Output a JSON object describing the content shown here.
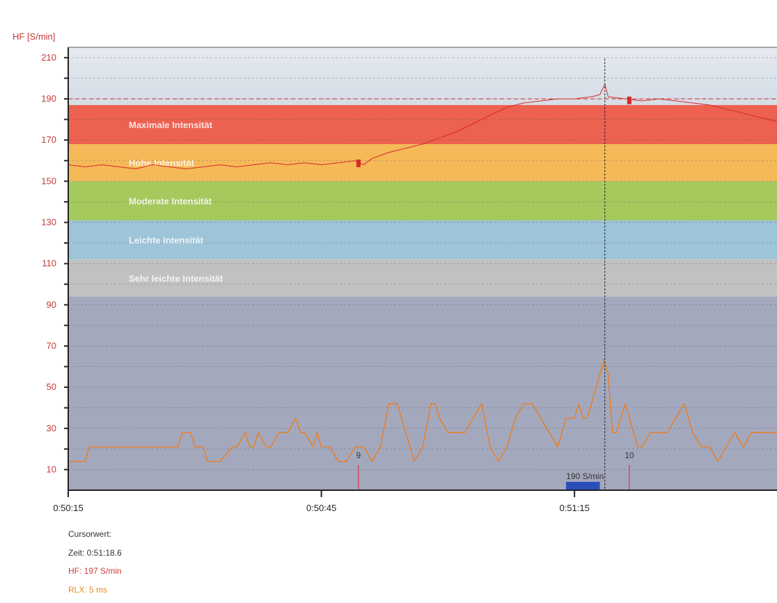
{
  "colors": {
    "hf": "#d62828",
    "hf_axis": "#c43a3a",
    "rlx": "#f07a14",
    "zone_max": "#ec6150",
    "zone_high": "#f5b958",
    "zone_moderate": "#a6c95e",
    "zone_light": "#9dc4d8",
    "zone_very_light": "#c1c1c1",
    "below_zones": "#a4a8bc",
    "above_zones_top": "#e6eaf0",
    "above_zones_bottom": "#d5dde6",
    "selection": "#2a4fb8"
  },
  "cursor": {
    "title": "Cursorwert:",
    "time": "Zeit: 0:51:18.6",
    "hf": "HF: 197 S/min",
    "rlx": "RLX: 5 ms"
  },
  "chart_data": {
    "type": "line",
    "ylabel": "HF [S/min]",
    "ylim": [
      0,
      215
    ],
    "yticks": [
      10,
      30,
      50,
      70,
      90,
      110,
      130,
      150,
      170,
      190,
      210
    ],
    "xlim_seconds": [
      0,
      84
    ],
    "xticks": [
      {
        "t": 0,
        "label": "0:50:15"
      },
      {
        "t": 30,
        "label": "0:50:45"
      },
      {
        "t": 60,
        "label": "0:51:15"
      }
    ],
    "grid": true,
    "zones": [
      {
        "name": "Maximale Intensität",
        "from": 168,
        "to": 187
      },
      {
        "name": "Hohe Intensität",
        "from": 150,
        "to": 168
      },
      {
        "name": "Moderate Intensität",
        "from": 131,
        "to": 150
      },
      {
        "name": "Leichte Intensität",
        "from": 112,
        "to": 131
      },
      {
        "name": "Sehr leichte Intensität",
        "from": 94,
        "to": 112
      }
    ],
    "hf_limit": 190,
    "cursor_t": 63.6,
    "laps": [
      {
        "t": 34.4,
        "label": "9"
      },
      {
        "t": 66.5,
        "label": "10"
      }
    ],
    "selection_label": "190 S/min",
    "selection_range": [
      59,
      63
    ],
    "series": [
      {
        "name": "HF",
        "x": [
          0,
          2,
          4,
          6,
          8,
          10,
          12,
          14,
          16,
          18,
          20,
          22,
          24,
          26,
          28,
          30,
          32,
          34,
          35,
          36,
          38,
          40,
          42,
          44,
          46,
          48,
          50,
          52,
          54,
          56,
          58,
          60,
          62,
          63,
          63.6,
          64,
          66,
          68,
          70,
          72,
          74,
          76,
          78,
          80,
          82,
          84
        ],
        "y": [
          158,
          157,
          158,
          157,
          156,
          158,
          157,
          156,
          157,
          158,
          157,
          158,
          159,
          158,
          159,
          158,
          159,
          160,
          158,
          161,
          164,
          166,
          168,
          171,
          174,
          178,
          182,
          186,
          188,
          189,
          190,
          190,
          191,
          192,
          197,
          191,
          190,
          189,
          190,
          189,
          188,
          187,
          185,
          183,
          181,
          179
        ]
      },
      {
        "name": "RLX",
        "x": [
          0,
          2,
          2.5,
          5,
          7,
          9,
          11,
          13,
          13.5,
          14.5,
          15,
          16,
          16.5,
          18,
          19.5,
          20,
          21,
          21.5,
          22,
          22.5,
          23.5,
          24,
          25,
          26,
          27,
          27.5,
          28,
          29,
          29.5,
          30,
          31,
          32,
          33,
          34,
          35,
          36,
          37,
          38,
          39,
          40,
          41,
          42,
          43,
          43.5,
          44,
          45,
          46,
          46.5,
          47,
          48,
          49,
          50,
          51,
          52,
          53,
          54,
          55,
          56,
          57,
          58,
          58.5,
          59,
          60,
          60.5,
          61,
          61.5,
          62,
          62.5,
          63,
          63.5,
          64,
          64.5,
          65,
          65.5,
          66,
          66.5,
          67,
          67.5,
          68,
          69,
          70,
          71,
          72,
          73,
          74,
          75,
          76,
          77,
          78,
          79,
          80,
          81,
          82,
          83,
          84
        ],
        "y": [
          14,
          14,
          21,
          21,
          21,
          21,
          21,
          21,
          28,
          28,
          21,
          21,
          14,
          14,
          21,
          21,
          28,
          21,
          21,
          28,
          21,
          21,
          28,
          28,
          35,
          28,
          28,
          21,
          28,
          21,
          21,
          14,
          14,
          21,
          21,
          14,
          21,
          42,
          42,
          28,
          14,
          21,
          42,
          42,
          35,
          28,
          28,
          28,
          28,
          35,
          42,
          21,
          14,
          21,
          35,
          42,
          42,
          35,
          28,
          21,
          28,
          35,
          35,
          42,
          35,
          35,
          42,
          49,
          56,
          63,
          56,
          28,
          28,
          35,
          42,
          35,
          28,
          21,
          21,
          28,
          28,
          28,
          35,
          42,
          28,
          21,
          21,
          14,
          21,
          28,
          21,
          28,
          28,
          28,
          28
        ]
      }
    ]
  }
}
